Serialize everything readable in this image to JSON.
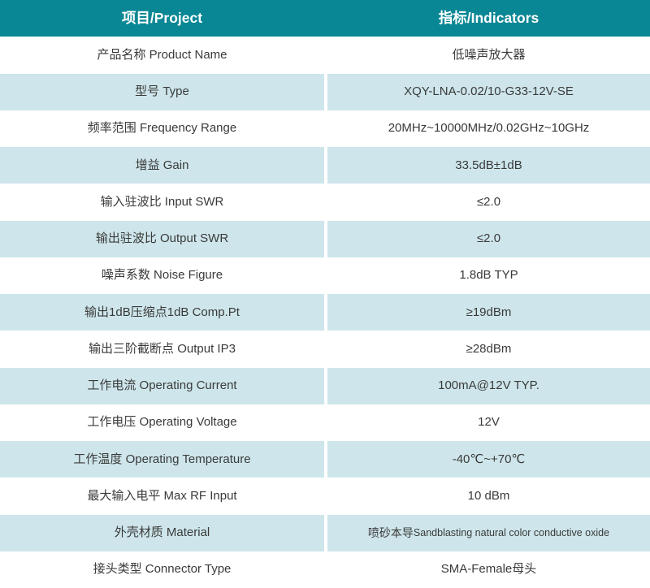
{
  "table": {
    "header": {
      "project": "项目/Project",
      "indicators": "指标/Indicators"
    },
    "rows": [
      {
        "label": "产品名称 Product Name",
        "value": "低噪声放大器"
      },
      {
        "label": "型号 Type",
        "value": "XQY-LNA-0.02/10-G33-12V-SE"
      },
      {
        "label": "频率范围 Frequency Range",
        "value": "20MHz~10000MHz/0.02GHz~10GHz"
      },
      {
        "label": "增益 Gain",
        "value": "33.5dB±1dB"
      },
      {
        "label": "输入驻波比 Input SWR",
        "value": "≤2.0"
      },
      {
        "label": "输出驻波比 Output SWR",
        "value": "≤2.0"
      },
      {
        "label": "噪声系数 Noise Figure",
        "value": "1.8dB TYP"
      },
      {
        "label": "输出1dB压缩点1dB Comp.Pt",
        "value": "≥19dBm"
      },
      {
        "label": "输出三阶截断点 Output IP3",
        "value": "≥28dBm"
      },
      {
        "label": "工作电流 Operating Current",
        "value": "100mA@12V TYP."
      },
      {
        "label": "工作电压 Operating Voltage",
        "value": "12V"
      },
      {
        "label": "工作温度 Operating Temperature",
        "value": "-40℃~+70℃"
      },
      {
        "label": "最大输入电平 Max RF Input",
        "value": "10 dBm"
      },
      {
        "label": "外壳材质 Material",
        "value_cn": "喷砂本导",
        "value_en": "Sandblasting natural color conductive oxide"
      },
      {
        "label": "接头类型 Connector Type",
        "value": "SMA-Female母头"
      }
    ],
    "colors": {
      "header_bg": "#0a8794",
      "header_text": "#ffffff",
      "row_alt_bg": "#cee6eb",
      "row_bg": "#ffffff",
      "body_text": "#3a3a3a"
    }
  }
}
